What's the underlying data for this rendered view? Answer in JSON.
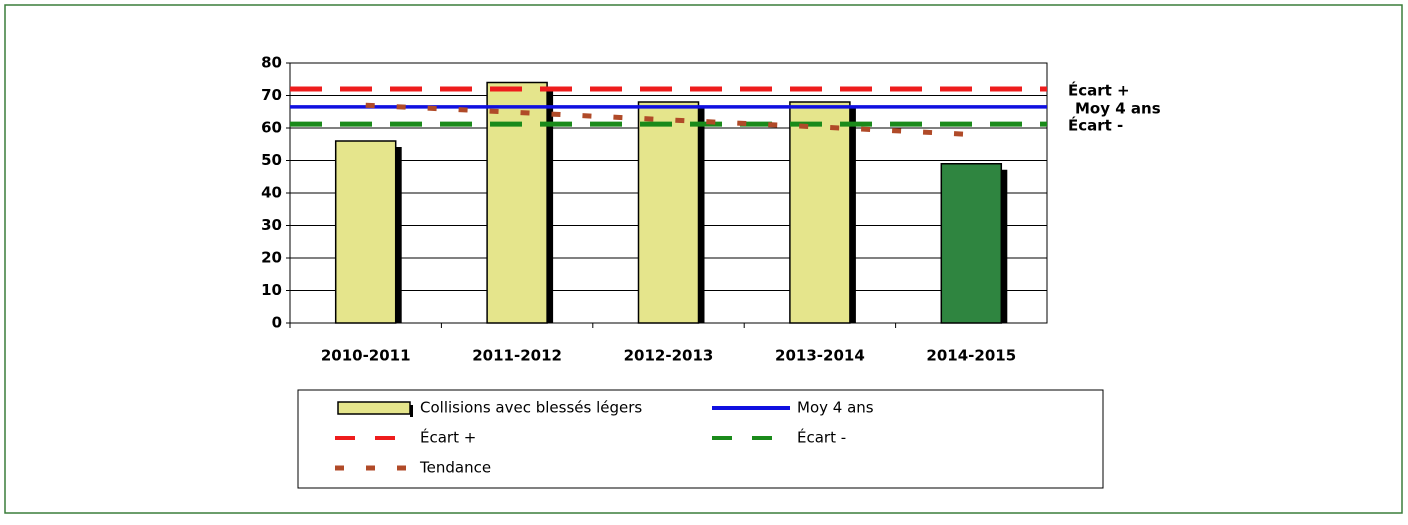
{
  "chart_data": {
    "type": "bar",
    "categories": [
      "2010-2011",
      "2011-2012",
      "2012-2013",
      "2013-2014",
      "2014-2015"
    ],
    "series": [
      {
        "name": "Collisions avec blessés légers",
        "type": "bar",
        "values": [
          56,
          74,
          68,
          68,
          49
        ],
        "colors": [
          "#e5e58c",
          "#e5e58c",
          "#e5e58c",
          "#e5e58c",
          "#2f8540"
        ]
      },
      {
        "name": "Moy 4 ans",
        "type": "hline",
        "value": 66.5,
        "color": "#1010e0"
      },
      {
        "name": "Écart +",
        "type": "hline",
        "value": 72,
        "color": "#ee1c1c",
        "dashed": true
      },
      {
        "name": "Écart -",
        "type": "hline",
        "value": 61.2,
        "color": "#1a8a1a",
        "dashed": true
      },
      {
        "name": "Tendance",
        "type": "line",
        "values": [
          67,
          64.8,
          62.5,
          60.3,
          58
        ],
        "color": "#b04a28",
        "dashed": true
      }
    ],
    "ylim": [
      0,
      80
    ],
    "yticks": [
      0,
      10,
      20,
      30,
      40,
      50,
      60,
      70,
      80
    ],
    "grid": true
  }
}
